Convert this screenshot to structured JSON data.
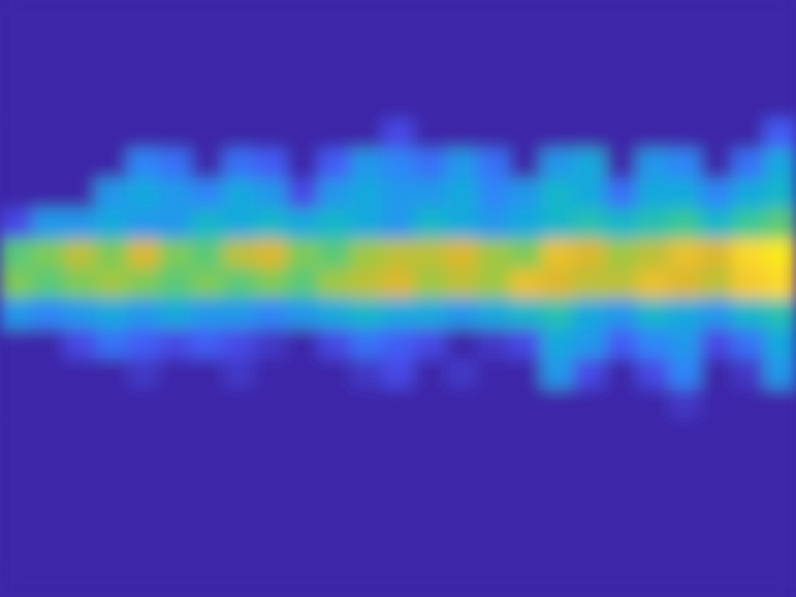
{
  "chart_data": {
    "type": "heatmap",
    "tick_labels": false,
    "color_range": [
      0,
      1
    ],
    "cells": [
      [
        0,
        0,
        0,
        0,
        0,
        0,
        0,
        0,
        0,
        0,
        0,
        0,
        0,
        0,
        0,
        0,
        0,
        0,
        0,
        0,
        0,
        0,
        0,
        0,
        0
      ],
      [
        0,
        0,
        0,
        0,
        0,
        0,
        0,
        0,
        0,
        0,
        0,
        0,
        0,
        0,
        0,
        0,
        0,
        0,
        0,
        0,
        0,
        0,
        0,
        0,
        0
      ],
      [
        0,
        0,
        0,
        0,
        0,
        0,
        0,
        0,
        0,
        0,
        0,
        0,
        0,
        0,
        0,
        0,
        0,
        0,
        0,
        0,
        0,
        0,
        0,
        0,
        0
      ],
      [
        0,
        0,
        0,
        0,
        0,
        0,
        0,
        0,
        0,
        0,
        0,
        0,
        0,
        0,
        0,
        0,
        0,
        0,
        0,
        0,
        0,
        0,
        0,
        0,
        0
      ],
      [
        0,
        0,
        0,
        0,
        0,
        0,
        0,
        0,
        0,
        0,
        0,
        0,
        0.1,
        0,
        0,
        0,
        0,
        0,
        0,
        0,
        0,
        0,
        0,
        0,
        0.15
      ],
      [
        0,
        0,
        0,
        0,
        0.25,
        0.2,
        0,
        0.2,
        0.15,
        0,
        0.15,
        0.3,
        0.25,
        0.2,
        0.3,
        0.2,
        0,
        0.3,
        0.35,
        0,
        0.3,
        0.25,
        0,
        0.2,
        0.35
      ],
      [
        0,
        0,
        0,
        0.3,
        0.35,
        0.3,
        0.25,
        0.35,
        0.3,
        0.1,
        0.3,
        0.35,
        0.3,
        0.3,
        0.35,
        0.25,
        0.3,
        0.4,
        0.35,
        0.2,
        0.35,
        0.35,
        0.25,
        0.35,
        0.4
      ],
      [
        0.1,
        0.3,
        0.3,
        0.35,
        0.3,
        0.3,
        0.4,
        0.35,
        0.4,
        0.35,
        0.4,
        0.35,
        0.3,
        0.4,
        0.35,
        0.3,
        0.35,
        0.4,
        0.45,
        0.4,
        0.45,
        0.5,
        0.4,
        0.5,
        0.55
      ],
      [
        0.55,
        0.6,
        0.7,
        0.6,
        0.75,
        0.6,
        0.55,
        0.7,
        0.75,
        0.6,
        0.55,
        0.65,
        0.7,
        0.7,
        0.75,
        0.65,
        0.6,
        0.8,
        0.75,
        0.65,
        0.7,
        0.8,
        0.75,
        0.9,
        0.95
      ],
      [
        0.6,
        0.55,
        0.6,
        0.65,
        0.6,
        0.55,
        0.6,
        0.55,
        0.6,
        0.55,
        0.65,
        0.7,
        0.75,
        0.65,
        0.7,
        0.65,
        0.8,
        0.75,
        0.7,
        0.7,
        0.8,
        0.75,
        0.7,
        0.85,
        0.9
      ],
      [
        0.3,
        0.25,
        0.3,
        0.35,
        0.3,
        0.35,
        0.3,
        0.3,
        0.25,
        0.3,
        0.35,
        0.4,
        0.35,
        0.35,
        0.3,
        0.35,
        0.4,
        0.45,
        0.35,
        0.3,
        0.4,
        0.35,
        0.3,
        0.4,
        0.45
      ],
      [
        0,
        0,
        0.1,
        0.2,
        0.15,
        0.1,
        0.15,
        0.1,
        0.05,
        0,
        0.1,
        0.2,
        0.15,
        0.1,
        0,
        0.05,
        0.1,
        0.35,
        0.3,
        0.15,
        0.25,
        0.3,
        0.1,
        0.2,
        0.35
      ],
      [
        0,
        0,
        0,
        0,
        0.05,
        0,
        0,
        0.05,
        0,
        0,
        0,
        0.05,
        0.1,
        0,
        0.05,
        0,
        0,
        0.3,
        0.1,
        0,
        0.1,
        0.25,
        0,
        0.05,
        0.3
      ],
      [
        0,
        0,
        0,
        0,
        0,
        0,
        0,
        0,
        0,
        0,
        0,
        0,
        0,
        0,
        0,
        0,
        0,
        0,
        0,
        0,
        0,
        0.05,
        0,
        0,
        0
      ],
      [
        0,
        0,
        0,
        0,
        0,
        0,
        0,
        0,
        0,
        0,
        0,
        0,
        0,
        0,
        0,
        0,
        0,
        0,
        0,
        0,
        0,
        0,
        0,
        0,
        0
      ],
      [
        0,
        0,
        0,
        0,
        0,
        0,
        0,
        0,
        0,
        0,
        0,
        0,
        0,
        0,
        0,
        0,
        0,
        0,
        0,
        0,
        0,
        0,
        0,
        0,
        0
      ],
      [
        0,
        0,
        0,
        0,
        0,
        0,
        0,
        0,
        0,
        0,
        0,
        0,
        0,
        0,
        0,
        0,
        0,
        0,
        0,
        0,
        0,
        0,
        0,
        0,
        0
      ],
      [
        0,
        0,
        0,
        0,
        0,
        0,
        0,
        0,
        0,
        0,
        0,
        0,
        0,
        0,
        0,
        0,
        0,
        0,
        0,
        0,
        0,
        0,
        0,
        0,
        0
      ],
      [
        0,
        0,
        0,
        0,
        0,
        0,
        0,
        0,
        0,
        0,
        0,
        0,
        0,
        0,
        0,
        0,
        0,
        0,
        0,
        0,
        0,
        0,
        0,
        0,
        0
      ],
      [
        0,
        0,
        0,
        0,
        0,
        0,
        0,
        0,
        0,
        0,
        0,
        0,
        0,
        0,
        0,
        0,
        0,
        0,
        0,
        0,
        0,
        0,
        0,
        0,
        0
      ]
    ]
  }
}
